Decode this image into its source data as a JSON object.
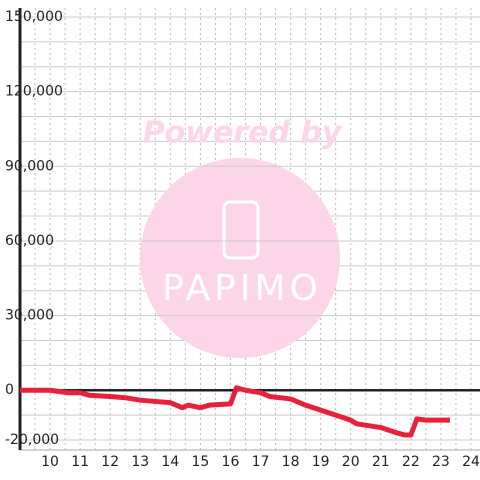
{
  "chart_data": {
    "type": "line",
    "watermark": {
      "top": "Powered by",
      "logo": "PAPIMO"
    },
    "x": [
      9,
      10,
      10.6,
      11,
      11.3,
      12,
      12.5,
      13,
      13.5,
      14,
      14.4,
      14.6,
      15,
      15.3,
      16,
      16.2,
      16.5,
      17,
      17.3,
      18,
      18.5,
      19,
      19.5,
      20,
      20.2,
      21,
      21.5,
      21.8,
      22,
      22.2,
      22.5,
      23.3
    ],
    "series": [
      {
        "color": "#e8213b",
        "values": [
          0,
          0,
          -1000,
          -1000,
          -2000,
          -2500,
          -3000,
          -4000,
          -4500,
          -5000,
          -7000,
          -6000,
          -7000,
          -6000,
          -5500,
          1000,
          0,
          -1000,
          -2500,
          -3500,
          -6000,
          -8000,
          -10000,
          -12000,
          -13500,
          -15000,
          -17000,
          -18000,
          -18000,
          -11500,
          -12000,
          -12000
        ]
      }
    ],
    "xlim": [
      9,
      24.3
    ],
    "xticks": [
      10,
      11,
      12,
      13,
      14,
      15,
      16,
      17,
      18,
      19,
      20,
      21,
      22,
      23,
      24
    ],
    "xminorticks": [
      9.5,
      10.5,
      11.5,
      12.5,
      13.5,
      14.5,
      15.5,
      16.5,
      17.5,
      18.5,
      19.5,
      20.5,
      21.5,
      22.5,
      23.5
    ],
    "ylim": [
      -20000,
      150000
    ],
    "yticks": [
      {
        "value": -20000,
        "label": "-20,000"
      },
      0,
      {
        "value": 30000,
        "label": "30,000"
      },
      {
        "value": 60000,
        "label": "60,000"
      },
      {
        "value": 90000,
        "label": "90,000"
      },
      {
        "value": 120000,
        "label": "120,000"
      },
      {
        "value": 150000,
        "label": "150,000"
      }
    ],
    "yminorticks": [
      -10000,
      10000,
      20000,
      40000,
      50000,
      70000,
      80000,
      100000,
      110000,
      130000,
      140000
    ],
    "grid": true
  }
}
